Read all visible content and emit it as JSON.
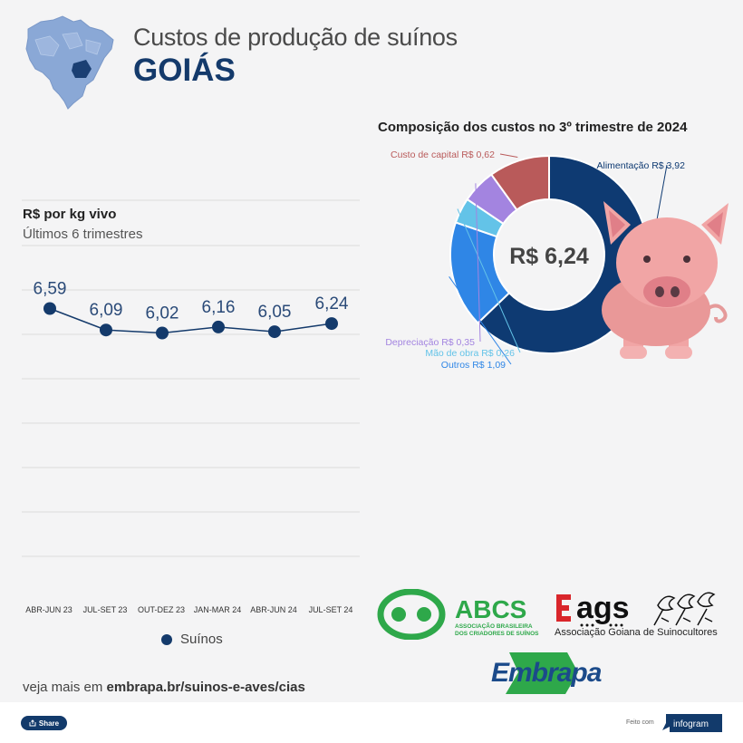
{
  "header": {
    "title": "Custos de produção de suínos",
    "subtitle": "GOIÁS"
  },
  "colors": {
    "navy": "#143a6b",
    "alimentacao": "#0e3a72",
    "outros": "#2f86e6",
    "mao_de_obra": "#63c3e8",
    "depreciacao": "#a384e0",
    "custo_de_capital": "#b95a5a"
  },
  "chart_data": [
    {
      "type": "line",
      "title": "R$ por kg vivo",
      "subtitle": "Últimos 6 trimestres",
      "categories": [
        "ABR-JUN 23",
        "JUL-SET 23",
        "OUT-DEZ 23",
        "JAN-MAR 24",
        "ABR-JUN 24",
        "JUL-SET 24"
      ],
      "series": [
        {
          "name": "Suínos",
          "values": [
            6.59,
            6.09,
            6.02,
            6.16,
            6.05,
            6.24
          ],
          "labels": [
            "6,59",
            "6,09",
            "6,02",
            "6,16",
            "6,05",
            "6,24"
          ]
        }
      ],
      "grid": true,
      "legend": "bottom"
    },
    {
      "type": "pie",
      "title": "Composição dos custos no 3º trimestre de 2024",
      "center_label": "R$ 6,24",
      "slices": [
        {
          "label": "Alimentação R$ 3,92",
          "value": 3.92,
          "color": "#0e3a72"
        },
        {
          "label": "Outros R$ 1,09",
          "value": 1.09,
          "color": "#2f86e6"
        },
        {
          "label": "Mão de obra R$ 0,26",
          "value": 0.26,
          "color": "#63c3e8"
        },
        {
          "label": "Depreciação R$ 0,35",
          "value": 0.35,
          "color": "#a384e0"
        },
        {
          "label": "Custo de capital R$ 0,62",
          "value": 0.62,
          "color": "#b95a5a"
        }
      ]
    }
  ],
  "logos": {
    "abcs_name": "ABCS",
    "abcs_line1": "ASSOCIAÇÃO BRASILEIRA",
    "abcs_line2": "DOS CRIADORES DE SUÍNOS",
    "ags_name": "ags",
    "ags_full": "Associação Goiana de Suinocultores",
    "embrapa": "Embrapa"
  },
  "footer": {
    "link_prefix": "veja mais em ",
    "link_url": "embrapa.br/suinos-e-aves/cias",
    "share_label": "Share",
    "made_with": "Feito com",
    "infogram": "infogram"
  }
}
